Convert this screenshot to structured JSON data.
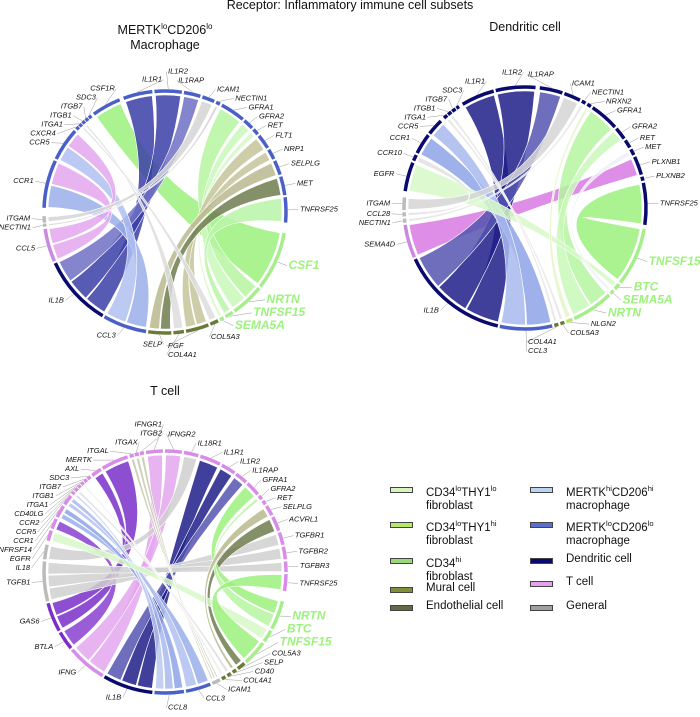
{
  "figure_title": "Receptor: Inflammatory immune cell subsets",
  "diagrams": [
    {
      "title": {
        "a": "MERTK",
        "a_sup": "lo",
        "b": "CD206",
        "b_sup": "lo",
        "line2": "Macrophage"
      },
      "sectors": [
        {
          "label": "IL1R1",
          "color": "#4a5fc7"
        },
        {
          "label": "IL1R2",
          "color": "#4a5fc7"
        },
        {
          "label": "IL1RAP",
          "color": "#4a5fc7"
        },
        {
          "label": "ICAM1",
          "color": "#4a5fc7"
        },
        {
          "label": "NECTIN1",
          "color": "#4a5fc7"
        },
        {
          "label": "GFRA1",
          "color": "#4a5fc7"
        },
        {
          "label": "GFRA2",
          "color": "#4a5fc7"
        },
        {
          "label": "RET",
          "color": "#4a5fc7"
        },
        {
          "label": "FLT1",
          "color": "#4a5fc7"
        },
        {
          "label": "NRP1",
          "color": "#4a5fc7"
        },
        {
          "label": "SELPLG",
          "color": "#4a5fc7"
        },
        {
          "label": "MET",
          "color": "#4a5fc7"
        },
        {
          "label": "TNFRSF25",
          "color": "#4a5fc7"
        },
        {
          "label": "CSF1",
          "color": "#a6ee8c",
          "fib": true
        },
        {
          "label": "NRTN",
          "color": "#a6ee8c",
          "fib": true
        },
        {
          "label": "TNFSF15",
          "color": "#a6ee8c",
          "fib": true
        },
        {
          "label": "SEMA5A",
          "color": "#a6ee8c",
          "fib": true
        },
        {
          "label": "COL5A3",
          "color": "#6b7a3a"
        },
        {
          "label": "PGF",
          "color": "#6b7a3a"
        },
        {
          "label": "COL4A1",
          "color": "#6b7a3a"
        },
        {
          "label": "SELP",
          "color": "#6b7a3a"
        },
        {
          "label": "CCL3",
          "color": "#4a5fc7"
        },
        {
          "label": "IL1B",
          "color": "#0a0a6e"
        },
        {
          "label": "CCL5",
          "color": "#c98ae0"
        },
        {
          "label": "NECTIN1",
          "color": "#bbbbbb"
        },
        {
          "label": "ITGAM",
          "color": "#bbbbbb"
        },
        {
          "label": "CCR1",
          "color": "#4a5fc7"
        },
        {
          "label": "CCR5",
          "color": "#4a5fc7"
        },
        {
          "label": "CXCR4",
          "color": "#4a5fc7"
        },
        {
          "label": "ITGA1",
          "color": "#4a5fc7"
        },
        {
          "label": "ITGB1",
          "color": "#4a5fc7"
        },
        {
          "label": "ITGB7",
          "color": "#4a5fc7"
        },
        {
          "label": "SDC3",
          "color": "#4a5fc7"
        },
        {
          "label": "CSF1R",
          "color": "#4a5fc7"
        }
      ],
      "links": [
        {
          "from": 13,
          "to": 33,
          "color": "#9cf07e"
        },
        {
          "from": 22,
          "to": 0,
          "color": "#3b3ea6"
        },
        {
          "from": 22,
          "to": 1,
          "color": "#3b3ea6"
        },
        {
          "from": 22,
          "to": 2,
          "color": "#7070c4"
        },
        {
          "from": 21,
          "to": 26,
          "color": "#9aaeea"
        },
        {
          "from": 21,
          "to": 27,
          "color": "#b0bff0"
        },
        {
          "from": 23,
          "to": 26,
          "color": "#e3a6ee"
        },
        {
          "from": 23,
          "to": 27,
          "color": "#e3a6ee"
        },
        {
          "from": 25,
          "to": 3,
          "color": "#d5d5d5"
        },
        {
          "from": 24,
          "to": 4,
          "color": "#d5d5d5"
        },
        {
          "from": 14,
          "to": 5,
          "color": "#b5f5a0"
        },
        {
          "from": 14,
          "to": 6,
          "color": "#c8f8b8"
        },
        {
          "from": 15,
          "to": 12,
          "color": "#b8f5a8"
        },
        {
          "from": 16,
          "to": 7,
          "color": "#d6f8c8"
        },
        {
          "from": 18,
          "to": 8,
          "color": "#c4c49a"
        },
        {
          "from": 18,
          "to": 9,
          "color": "#c4c49a"
        },
        {
          "from": 20,
          "to": 11,
          "color": "#6f7c4e"
        },
        {
          "from": 20,
          "to": 10,
          "color": "#b9b98f"
        },
        {
          "from": 19,
          "to": 30,
          "color": "#dddddd"
        },
        {
          "from": 17,
          "to": 29,
          "color": "#dddddd"
        }
      ]
    },
    {
      "title": {
        "line1": "Dendritic cell"
      },
      "sectors": [
        {
          "label": "ITGA1",
          "color": "#0a0a6e"
        },
        {
          "label": "ITGB1",
          "color": "#0a0a6e"
        },
        {
          "label": "ITGB7",
          "color": "#0a0a6e"
        },
        {
          "label": "SDC3",
          "color": "#0a0a6e"
        },
        {
          "label": "IL1R1",
          "color": "#0a0a6e"
        },
        {
          "label": "IL1R2",
          "color": "#0a0a6e"
        },
        {
          "label": "IL1RAP",
          "color": "#0a0a6e"
        },
        {
          "label": "ICAM1",
          "color": "#0a0a6e"
        },
        {
          "label": "NECTIN1",
          "color": "#0a0a6e"
        },
        {
          "label": "NRXN2",
          "color": "#0a0a6e"
        },
        {
          "label": "GFRA1",
          "color": "#0a0a6e"
        },
        {
          "label": "GFRA2",
          "color": "#0a0a6e"
        },
        {
          "label": "RET",
          "color": "#0a0a6e"
        },
        {
          "label": "MET",
          "color": "#0a0a6e"
        },
        {
          "label": "PLXNB1",
          "color": "#0a0a6e"
        },
        {
          "label": "PLXNB2",
          "color": "#0a0a6e"
        },
        {
          "label": "TNFRSF25",
          "color": "#0a0a6e"
        },
        {
          "label": "TNFSF15",
          "color": "#a6ee8c",
          "fib": true
        },
        {
          "label": "BTC",
          "color": "#a6ee8c",
          "fib": true
        },
        {
          "label": "SEMA5A",
          "color": "#a6ee8c",
          "fib": true
        },
        {
          "label": "NRTN",
          "color": "#a6ee8c",
          "fib": true
        },
        {
          "label": "NLGN2",
          "color": "#b5e86a"
        },
        {
          "label": "COL5A3",
          "color": "#6b7a3a"
        },
        {
          "label": "COL4A1",
          "color": "#6b7a3a"
        },
        {
          "label": "CCL3",
          "color": "#4a5fc7"
        },
        {
          "label": "IL1B",
          "color": "#0a0a6e"
        },
        {
          "label": "SEMA4D",
          "color": "#c98ae0"
        },
        {
          "label": "NECTIN1",
          "color": "#bbbbbb"
        },
        {
          "label": "CCL28",
          "color": "#bbbbbb"
        },
        {
          "label": "ITGAM",
          "color": "#bbbbbb"
        },
        {
          "label": "EGFR",
          "color": "#0a0a6e"
        },
        {
          "label": "CCR10",
          "color": "#0a0a6e"
        },
        {
          "label": "CCR1",
          "color": "#0a0a6e"
        },
        {
          "label": "CCR5",
          "color": "#0a0a6e"
        }
      ],
      "links": [
        {
          "from": 26,
          "to": 14,
          "color": "#d97ae3"
        },
        {
          "from": 25,
          "to": 4,
          "color": "#1f1f8a"
        },
        {
          "from": 25,
          "to": 5,
          "color": "#1f1f8a"
        },
        {
          "from": 25,
          "to": 6,
          "color": "#5555b0"
        },
        {
          "from": 24,
          "to": 32,
          "color": "#8ea3e6"
        },
        {
          "from": 24,
          "to": 33,
          "color": "#a8b8ee"
        },
        {
          "from": 17,
          "to": 16,
          "color": "#9cf07e"
        },
        {
          "from": 20,
          "to": 10,
          "color": "#b5f5a0"
        },
        {
          "from": 20,
          "to": 11,
          "color": "#c8f8b8"
        },
        {
          "from": 18,
          "to": 30,
          "color": "#d6f8c8"
        },
        {
          "from": 29,
          "to": 7,
          "color": "#d5d5d5"
        },
        {
          "from": 27,
          "to": 8,
          "color": "#e5e5e5"
        },
        {
          "from": 21,
          "to": 9,
          "color": "#e6f5c8"
        },
        {
          "from": 28,
          "to": 31,
          "color": "#e0e0e0"
        },
        {
          "from": 19,
          "to": 13,
          "color": "#eef0f8"
        },
        {
          "from": 23,
          "to": 1,
          "color": "#e5e5e5"
        },
        {
          "from": 22,
          "to": 0,
          "color": "#e5e5e5"
        }
      ]
    },
    {
      "title": {
        "line1": "T cell"
      },
      "sectors": [
        {
          "label": "CD40LG",
          "color": "#d98be8"
        },
        {
          "label": "ITGA1",
          "color": "#d98be8"
        },
        {
          "label": "ITGB1",
          "color": "#d98be8"
        },
        {
          "label": "ITGB7",
          "color": "#d98be8"
        },
        {
          "label": "SDC3",
          "color": "#d98be8"
        },
        {
          "label": "AXL",
          "color": "#d98be8"
        },
        {
          "label": "MERTK",
          "color": "#d98be8"
        },
        {
          "label": "ITGAL",
          "color": "#d98be8"
        },
        {
          "label": "ITGAX",
          "color": "#d98be8"
        },
        {
          "label": "ITGB2",
          "color": "#d98be8"
        },
        {
          "label": "IFNGR1",
          "color": "#d98be8"
        },
        {
          "label": "IFNGR2",
          "color": "#d98be8"
        },
        {
          "label": "IL18R1",
          "color": "#d98be8"
        },
        {
          "label": "IL1R1",
          "color": "#d98be8"
        },
        {
          "label": "IL1R2",
          "color": "#d98be8"
        },
        {
          "label": "IL1RAP",
          "color": "#d98be8"
        },
        {
          "label": "GFRA1",
          "color": "#d98be8"
        },
        {
          "label": "GFRA2",
          "color": "#d98be8"
        },
        {
          "label": "RET",
          "color": "#d98be8"
        },
        {
          "label": "SELPLG",
          "color": "#d98be8"
        },
        {
          "label": "ACVRL1",
          "color": "#d98be8"
        },
        {
          "label": "TGFBR1",
          "color": "#d98be8"
        },
        {
          "label": "TGFBR2",
          "color": "#d98be8"
        },
        {
          "label": "TGFBR3",
          "color": "#d98be8"
        },
        {
          "label": "TNFRSF25",
          "color": "#d98be8"
        },
        {
          "label": "NRTN",
          "color": "#a6ee8c",
          "fib": true
        },
        {
          "label": "BTC",
          "color": "#a6ee8c",
          "fib": true
        },
        {
          "label": "TNFSF15",
          "color": "#a6ee8c",
          "fib": true
        },
        {
          "label": "COL5A3",
          "color": "#6b7a3a"
        },
        {
          "label": "SELP",
          "color": "#6b7a3a"
        },
        {
          "label": "CD40",
          "color": "#6b7a3a"
        },
        {
          "label": "COL4A1",
          "color": "#6b7a3a"
        },
        {
          "label": "ICAM1",
          "color": "#bbbbbb"
        },
        {
          "label": "CCL3",
          "color": "#4a5fc7"
        },
        {
          "label": "CCL8",
          "color": "#4a5fc7"
        },
        {
          "label": "IL1B",
          "color": "#0a0a6e"
        },
        {
          "label": "IFNG",
          "color": "#d98be8"
        },
        {
          "label": "BTLA",
          "color": "#7a2fc9"
        },
        {
          "label": "GAS6",
          "color": "#7a2fc9"
        },
        {
          "label": "TGFB1",
          "color": "#bbbbbb"
        },
        {
          "label": "IL18",
          "color": "#bbbbbb"
        },
        {
          "label": "EGFR",
          "color": "#d98be8"
        },
        {
          "label": "TNFRSF14",
          "color": "#d98be8"
        },
        {
          "label": "CCR1",
          "color": "#d98be8"
        },
        {
          "label": "CCR5",
          "color": "#d98be8"
        },
        {
          "label": "CCR2",
          "color": "#d98be8"
        }
      ],
      "links": [
        {
          "from": 38,
          "to": 5,
          "color": "#7a2fc9"
        },
        {
          "from": 38,
          "to": 6,
          "color": "#7a2fc9"
        },
        {
          "from": 37,
          "to": 42,
          "color": "#8a3fd0"
        },
        {
          "from": 36,
          "to": 10,
          "color": "#e3a6ee"
        },
        {
          "from": 36,
          "to": 11,
          "color": "#e3a6ee"
        },
        {
          "from": 35,
          "to": 13,
          "color": "#1f1f8a"
        },
        {
          "from": 35,
          "to": 14,
          "color": "#1f1f8a"
        },
        {
          "from": 35,
          "to": 15,
          "color": "#5555b0"
        },
        {
          "from": 40,
          "to": 12,
          "color": "#cfcfcf"
        },
        {
          "from": 39,
          "to": 21,
          "color": "#d0d0d0"
        },
        {
          "from": 39,
          "to": 22,
          "color": "#d0d0d0"
        },
        {
          "from": 39,
          "to": 23,
          "color": "#d0d0d0"
        },
        {
          "from": 28,
          "to": 20,
          "color": "#6f7c4e"
        },
        {
          "from": 33,
          "to": 43,
          "color": "#9aaeea"
        },
        {
          "from": 33,
          "to": 44,
          "color": "#b0bff0"
        },
        {
          "from": 34,
          "to": 43,
          "color": "#8ea3e6"
        },
        {
          "from": 34,
          "to": 44,
          "color": "#a8b8ee"
        },
        {
          "from": 34,
          "to": 45,
          "color": "#b8c8f0"
        },
        {
          "from": 25,
          "to": 16,
          "color": "#9cf07e"
        },
        {
          "from": 25,
          "to": 17,
          "color": "#b5f5a0"
        },
        {
          "from": 26,
          "to": 41,
          "color": "#d6f8c8"
        },
        {
          "from": 27,
          "to": 24,
          "color": "#9cf07e"
        },
        {
          "from": 29,
          "to": 19,
          "color": "#b9b98f"
        },
        {
          "from": 32,
          "to": 7,
          "color": "#c6c8b0"
        },
        {
          "from": 32,
          "to": 8,
          "color": "#c6c8b0"
        },
        {
          "from": 32,
          "to": 9,
          "color": "#c6c8b0"
        },
        {
          "from": 30,
          "to": 0,
          "color": "#dddddd"
        },
        {
          "from": 31,
          "to": 2,
          "color": "#eeeeee"
        }
      ]
    }
  ],
  "legend": {
    "left": [
      {
        "parts": [
          [
            "CD34",
            "lo"
          ],
          [
            "THY1",
            "lo"
          ]
        ],
        "line2": "fibroblast",
        "color": "#d8f5c0"
      },
      {
        "parts": [
          [
            "CD34",
            "lo"
          ],
          [
            "THY1",
            "hi"
          ]
        ],
        "line2": "fibroblast",
        "color": "#b8e86a"
      },
      {
        "parts": [
          [
            "CD34",
            "hi"
          ]
        ],
        "line2": "fibroblast",
        "color": "#9ad97a"
      },
      {
        "parts": [
          [
            "Mural cell",
            ""
          ]
        ],
        "line2": "",
        "color": "#7f8f3a"
      },
      {
        "parts": [
          [
            "Endothelial cell",
            ""
          ]
        ],
        "line2": "",
        "color": "#5e6b45"
      }
    ],
    "right": [
      {
        "parts": [
          [
            "MERTK",
            "hi"
          ],
          [
            "CD206",
            "hi"
          ]
        ],
        "line2": "macrophage",
        "color": "#b8d4f0"
      },
      {
        "parts": [
          [
            "MERTK",
            "lo"
          ],
          [
            "CD206",
            "lo"
          ]
        ],
        "line2": "macrophage",
        "color": "#5a6fd0"
      },
      {
        "parts": [
          [
            "Dendritic cell",
            ""
          ]
        ],
        "line2": "",
        "color": "#0a0a6e"
      },
      {
        "parts": [
          [
            "T cell",
            ""
          ]
        ],
        "line2": "",
        "color": "#e8a0ee"
      },
      {
        "parts": [
          [
            "General",
            ""
          ]
        ],
        "line2": "",
        "color": "#a0a0a0"
      }
    ]
  }
}
